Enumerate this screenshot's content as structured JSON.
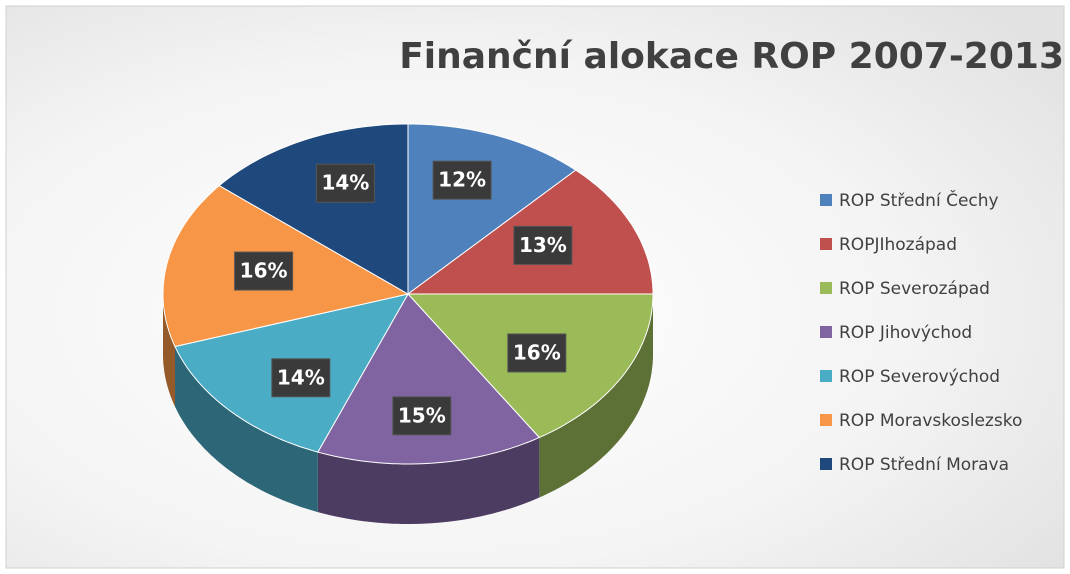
{
  "chart_data": {
    "type": "pie",
    "title": "Finanční alokace ROP 2007-2013",
    "categories": [
      "ROP Střední Čechy",
      "ROPJIhozápad",
      "ROP Severozápad",
      "ROP Jihovýchod",
      "ROP Severovýchod",
      "ROP Moravskoslezsko",
      "ROP Střední Morava"
    ],
    "values": [
      12,
      13,
      16,
      15,
      14,
      16,
      14
    ],
    "value_labels": [
      "12%",
      "13%",
      "16%",
      "15%",
      "14%",
      "16%",
      "14%"
    ],
    "colors": [
      "#4f81bd",
      "#c0504d",
      "#9bbb59",
      "#8064a2",
      "#4bacc6",
      "#f79646",
      "#1f497d"
    ],
    "legend": "right"
  }
}
